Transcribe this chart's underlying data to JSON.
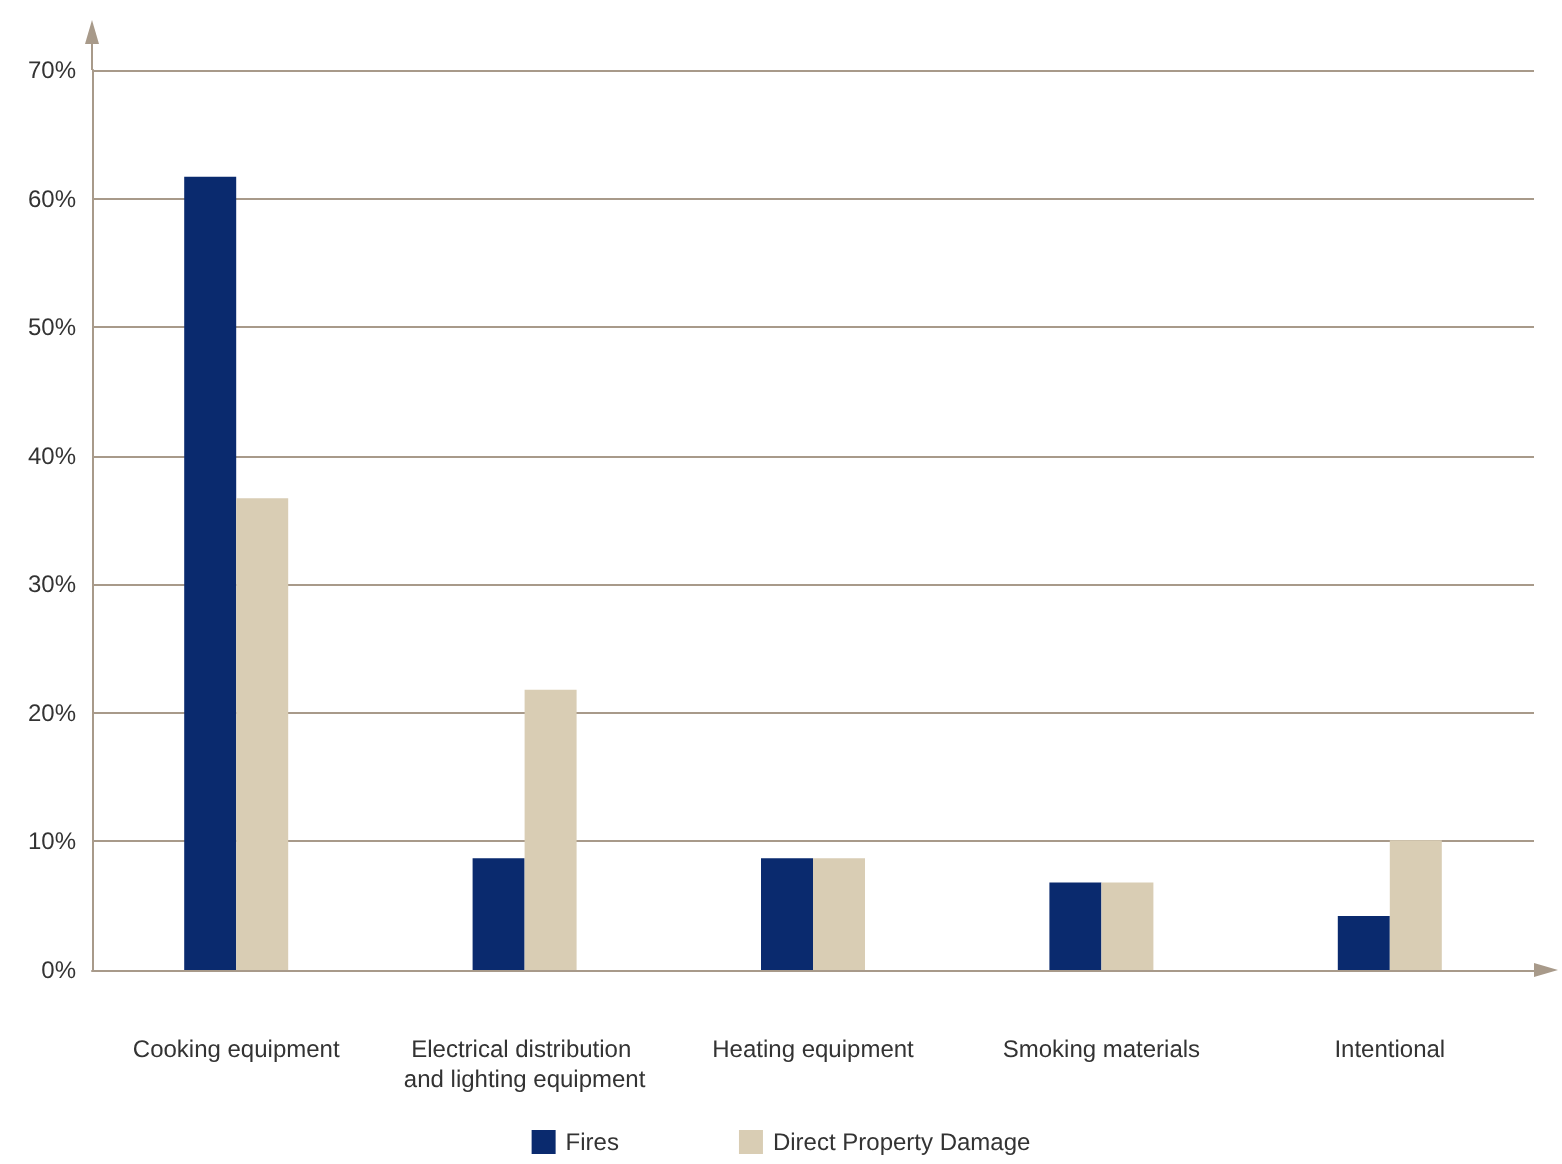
{
  "chart_data": {
    "type": "bar",
    "categories": [
      "Cooking equipment",
      "Electrical distribution and lighting equipment",
      "Heating equipment",
      "Smoking materials",
      "Intentional"
    ],
    "series": [
      {
        "name": "Fires",
        "color": "#0a2a6e",
        "values": [
          61.7,
          8.7,
          8.7,
          6.8,
          4.2
        ]
      },
      {
        "name": "Direct Property Damage",
        "color": "#d9cdb4",
        "values": [
          36.7,
          21.8,
          8.7,
          6.8,
          10.1
        ]
      }
    ],
    "ylim": [
      0,
      70
    ],
    "yticks": [
      {
        "value": 0,
        "label": "0%"
      },
      {
        "value": 10,
        "label": "10%"
      },
      {
        "value": 20,
        "label": "20%"
      },
      {
        "value": 30,
        "label": "30%"
      },
      {
        "value": 40,
        "label": "40%"
      },
      {
        "value": 50,
        "label": "50%"
      },
      {
        "value": 60,
        "label": "60%"
      },
      {
        "value": 70,
        "label": "70%"
      }
    ],
    "grid": "y",
    "legend": "bottom"
  }
}
